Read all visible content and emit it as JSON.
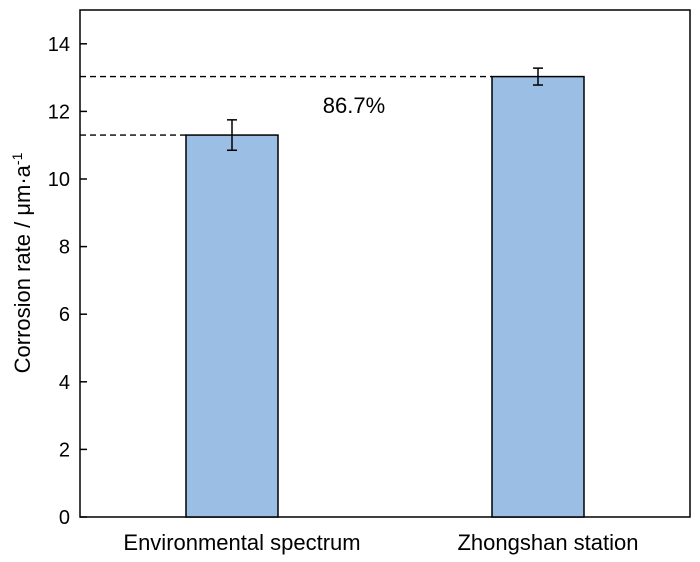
{
  "chart_data": {
    "type": "bar",
    "categories": [
      "Environmental spectrum",
      "Zhongshan station"
    ],
    "values": [
      11.3,
      13.03
    ],
    "errors": [
      0.45,
      0.25
    ],
    "ylabel": "Corrosion rate / μm·a",
    "ylabel_sup": "-1",
    "xlabel": "",
    "title": "",
    "ylim": [
      0,
      15
    ],
    "yticks": [
      "0",
      "2",
      "4",
      "6",
      "8",
      "10",
      "12",
      "14"
    ],
    "annotation": "86.7%",
    "colors": {
      "bar_fill": "#9bbfe4",
      "bar_stroke": "#000000",
      "axis": "#000000"
    }
  }
}
